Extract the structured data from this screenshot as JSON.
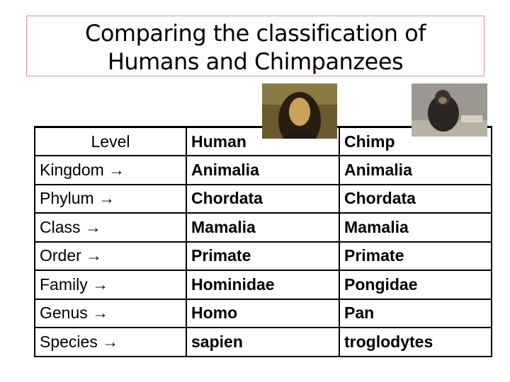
{
  "title_lines": [
    "Comparing the classification of",
    "Humans and Chimpanzees"
  ],
  "table": {
    "header": [
      "Level",
      "Human",
      "Chimp"
    ],
    "rows": [
      [
        "Kingdom →",
        "Animalia",
        "Animalia"
      ],
      [
        "Phylum →",
        "Chordata",
        "Chordata"
      ],
      [
        "Class →",
        "Mamalia",
        "Mamalia"
      ],
      [
        "Order →",
        "Primate",
        "Primate"
      ],
      [
        "Family →",
        "Hominidae",
        "Pongidae"
      ],
      [
        "Genus →",
        "Homo",
        "Pan"
      ],
      [
        "Species →",
        "sapien",
        "troglodytes"
      ]
    ]
  }
}
